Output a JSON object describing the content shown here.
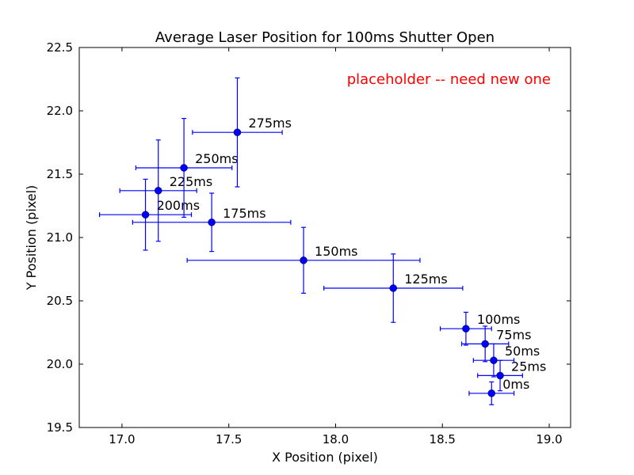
{
  "chart_data": {
    "type": "scatter",
    "title": "Average Laser Position for 100ms Shutter Open",
    "xlabel": "X Position (pixel)",
    "ylabel": "Y Position (pixel)",
    "xlim": [
      16.8,
      19.1
    ],
    "ylim": [
      19.5,
      22.5
    ],
    "xticks": [
      17.0,
      17.5,
      18.0,
      18.5,
      19.0
    ],
    "xtick_labels": [
      "17.0",
      "17.5",
      "18.0",
      "18.5",
      "19.0"
    ],
    "yticks": [
      19.5,
      20.0,
      20.5,
      21.0,
      21.5,
      22.0,
      22.5
    ],
    "ytick_labels": [
      "19.5",
      "20.0",
      "20.5",
      "21.0",
      "21.5",
      "22.0",
      "22.5"
    ],
    "grid": false,
    "marker_color": "#0000ff",
    "annotation": {
      "text": "placeholder -- need new one",
      "color": "#ff0000"
    },
    "points": [
      {
        "label": "0ms",
        "x": 18.73,
        "y": 19.77,
        "xerr": 0.105,
        "yerr": 0.09
      },
      {
        "label": "25ms",
        "x": 18.77,
        "y": 19.91,
        "xerr": 0.105,
        "yerr": 0.12
      },
      {
        "label": "50ms",
        "x": 18.74,
        "y": 20.03,
        "xerr": 0.095,
        "yerr": 0.13
      },
      {
        "label": "75ms",
        "x": 18.7,
        "y": 20.16,
        "xerr": 0.11,
        "yerr": 0.14
      },
      {
        "label": "100ms",
        "x": 18.61,
        "y": 20.28,
        "xerr": 0.12,
        "yerr": 0.13
      },
      {
        "label": "125ms",
        "x": 18.27,
        "y": 20.6,
        "xerr": 0.325,
        "yerr": 0.27
      },
      {
        "label": "150ms",
        "x": 17.85,
        "y": 20.82,
        "xerr": 0.545,
        "yerr": 0.26
      },
      {
        "label": "175ms",
        "x": 17.42,
        "y": 21.12,
        "xerr": 0.37,
        "yerr": 0.23
      },
      {
        "label": "200ms",
        "x": 17.11,
        "y": 21.18,
        "xerr": 0.215,
        "yerr": 0.28
      },
      {
        "label": "225ms",
        "x": 17.17,
        "y": 21.37,
        "xerr": 0.18,
        "yerr": 0.4
      },
      {
        "label": "250ms",
        "x": 17.29,
        "y": 21.55,
        "xerr": 0.225,
        "yerr": 0.39
      },
      {
        "label": "275ms",
        "x": 17.54,
        "y": 21.83,
        "xerr": 0.21,
        "yerr": 0.43
      }
    ]
  }
}
